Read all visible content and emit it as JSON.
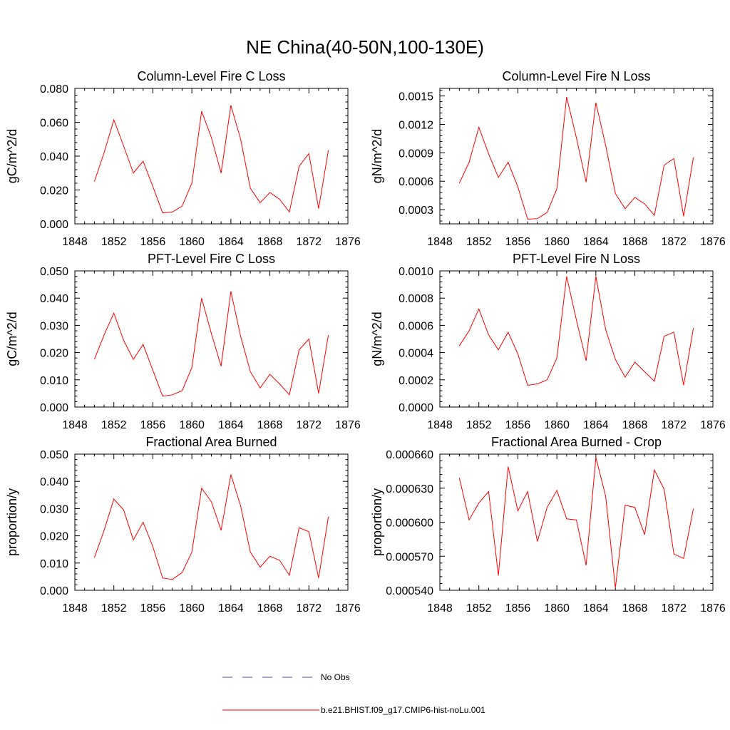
{
  "figure_title": "NE China(40-50N,100-130E)",
  "legend": {
    "obs_label": "No Obs",
    "obs_color": "#4b4bbf",
    "model_label": "b.e21.BHIST.f09_g17.CMIP6-hist-noLu.001",
    "model_color": "#ff0000"
  },
  "chart_data": [
    {
      "type": "line",
      "title": "Column-Level Fire C Loss",
      "ylabel": "gC/m^2/d",
      "xlim": [
        1848,
        1876
      ],
      "xticks": [
        1848,
        1852,
        1856,
        1860,
        1864,
        1868,
        1872,
        1876
      ],
      "xtick_labels": [
        "1848",
        "1852",
        "1856",
        "1860",
        "1864",
        "1868",
        "1872",
        "1876"
      ],
      "ylim": [
        0,
        0.08
      ],
      "yticks": [
        0,
        0.02,
        0.04,
        0.06,
        0.08
      ],
      "ytick_labels": [
        "0.000",
        "0.020",
        "0.040",
        "0.060",
        "0.080"
      ],
      "series": [
        {
          "color": "#ff0000",
          "x": [
            1850,
            1851,
            1852,
            1853,
            1854,
            1855,
            1856,
            1857,
            1858,
            1859,
            1860,
            1861,
            1862,
            1863,
            1864,
            1865,
            1866,
            1867,
            1868,
            1869,
            1870,
            1871,
            1872,
            1873,
            1874
          ],
          "values": [
            0.025,
            0.042,
            0.0615,
            0.046,
            0.03,
            0.037,
            0.022,
            0.0065,
            0.007,
            0.0105,
            0.024,
            0.0665,
            0.051,
            0.03,
            0.07,
            0.05,
            0.021,
            0.0125,
            0.0185,
            0.0145,
            0.007,
            0.034,
            0.0415,
            0.009,
            0.0435
          ]
        }
      ]
    },
    {
      "type": "line",
      "title": "Column-Level Fire N Loss",
      "ylabel": "gN/m^2/d",
      "xlim": [
        1848,
        1876
      ],
      "xticks": [
        1848,
        1852,
        1856,
        1860,
        1864,
        1868,
        1872,
        1876
      ],
      "xtick_labels": [
        "1848",
        "1852",
        "1856",
        "1860",
        "1864",
        "1868",
        "1872",
        "1876"
      ],
      "ylim": [
        0.00015,
        0.00158
      ],
      "yticks": [
        0.0003,
        0.0006,
        0.0009,
        0.0012,
        0.0015
      ],
      "ytick_labels": [
        "0.0003",
        "0.0006",
        "0.0009",
        "0.0012",
        "0.0015"
      ],
      "series": [
        {
          "color": "#ff0000",
          "x": [
            1850,
            1851,
            1852,
            1853,
            1854,
            1855,
            1856,
            1857,
            1858,
            1859,
            1860,
            1861,
            1862,
            1863,
            1864,
            1865,
            1866,
            1867,
            1868,
            1869,
            1870,
            1871,
            1872,
            1873,
            1874
          ],
          "values": [
            0.00058,
            0.0008,
            0.00117,
            0.00089,
            0.00064,
            0.0008,
            0.00054,
            0.0002,
            0.000205,
            0.00027,
            0.00052,
            0.00149,
            0.00106,
            0.00059,
            0.00143,
            0.00098,
            0.00047,
            0.00031,
            0.00043,
            0.00036,
            0.00024,
            0.00077,
            0.00084,
            0.00023,
            0.00085
          ]
        }
      ]
    },
    {
      "type": "line",
      "title": "PFT-Level Fire C Loss",
      "ylabel": "gC/m^2/d",
      "xlim": [
        1848,
        1876
      ],
      "xticks": [
        1848,
        1852,
        1856,
        1860,
        1864,
        1868,
        1872,
        1876
      ],
      "xtick_labels": [
        "1848",
        "1852",
        "1856",
        "1860",
        "1864",
        "1868",
        "1872",
        "1876"
      ],
      "ylim": [
        0,
        0.05
      ],
      "yticks": [
        0,
        0.01,
        0.02,
        0.03,
        0.04,
        0.05
      ],
      "ytick_labels": [
        "0.000",
        "0.010",
        "0.020",
        "0.030",
        "0.040",
        "0.050"
      ],
      "series": [
        {
          "color": "#ff0000",
          "x": [
            1850,
            1851,
            1852,
            1853,
            1854,
            1855,
            1856,
            1857,
            1858,
            1859,
            1860,
            1861,
            1862,
            1863,
            1864,
            1865,
            1866,
            1867,
            1868,
            1869,
            1870,
            1871,
            1872,
            1873,
            1874
          ],
          "values": [
            0.0175,
            0.0265,
            0.0345,
            0.0245,
            0.0175,
            0.023,
            0.0135,
            0.004,
            0.0045,
            0.006,
            0.0145,
            0.04,
            0.027,
            0.015,
            0.0425,
            0.026,
            0.013,
            0.007,
            0.012,
            0.0085,
            0.0045,
            0.021,
            0.025,
            0.005,
            0.0265
          ]
        }
      ]
    },
    {
      "type": "line",
      "title": "PFT-Level Fire N Loss",
      "ylabel": "gN/m^2/d",
      "xlim": [
        1848,
        1876
      ],
      "xticks": [
        1848,
        1852,
        1856,
        1860,
        1864,
        1868,
        1872,
        1876
      ],
      "xtick_labels": [
        "1848",
        "1852",
        "1856",
        "1860",
        "1864",
        "1868",
        "1872",
        "1876"
      ],
      "ylim": [
        0,
        0.001
      ],
      "yticks": [
        0,
        0.0002,
        0.0004,
        0.0006,
        0.0008,
        0.001
      ],
      "ytick_labels": [
        "0.0000",
        "0.0002",
        "0.0004",
        "0.0006",
        "0.0008",
        "0.0010"
      ],
      "series": [
        {
          "color": "#ff0000",
          "x": [
            1850,
            1851,
            1852,
            1853,
            1854,
            1855,
            1856,
            1857,
            1858,
            1859,
            1860,
            1861,
            1862,
            1863,
            1864,
            1865,
            1866,
            1867,
            1868,
            1869,
            1870,
            1871,
            1872,
            1873,
            1874
          ],
          "values": [
            0.00045,
            0.00056,
            0.00072,
            0.00053,
            0.00042,
            0.00055,
            0.00039,
            0.00016,
            0.00017,
            0.0002,
            0.00036,
            0.00096,
            0.00064,
            0.00034,
            0.00096,
            0.00057,
            0.00035,
            0.00022,
            0.00033,
            0.00026,
            0.00019,
            0.00052,
            0.00055,
            0.00016,
            0.00058
          ]
        }
      ]
    },
    {
      "type": "line",
      "title": "Fractional Area Burned",
      "ylabel": "proportion/y",
      "xlim": [
        1848,
        1876
      ],
      "xticks": [
        1848,
        1852,
        1856,
        1860,
        1864,
        1868,
        1872,
        1876
      ],
      "xtick_labels": [
        "1848",
        "1852",
        "1856",
        "1860",
        "1864",
        "1868",
        "1872",
        "1876"
      ],
      "ylim": [
        0,
        0.05
      ],
      "yticks": [
        0,
        0.01,
        0.02,
        0.03,
        0.04,
        0.05
      ],
      "ytick_labels": [
        "0.000",
        "0.010",
        "0.020",
        "0.030",
        "0.040",
        "0.050"
      ],
      "series": [
        {
          "color": "#ff0000",
          "x": [
            1850,
            1851,
            1852,
            1853,
            1854,
            1855,
            1856,
            1857,
            1858,
            1859,
            1860,
            1861,
            1862,
            1863,
            1864,
            1865,
            1866,
            1867,
            1868,
            1869,
            1870,
            1871,
            1872,
            1873,
            1874
          ],
          "values": [
            0.012,
            0.022,
            0.0335,
            0.0295,
            0.0185,
            0.025,
            0.016,
            0.0045,
            0.004,
            0.0065,
            0.014,
            0.0375,
            0.0325,
            0.022,
            0.0425,
            0.031,
            0.014,
            0.0085,
            0.0125,
            0.011,
            0.0055,
            0.023,
            0.0215,
            0.0045,
            0.027
          ]
        }
      ]
    },
    {
      "type": "line",
      "title": "Fractional Area Burned - Crop",
      "ylabel": "proportion/y",
      "xlim": [
        1848,
        1876
      ],
      "xticks": [
        1848,
        1852,
        1856,
        1860,
        1864,
        1868,
        1872,
        1876
      ],
      "xtick_labels": [
        "1848",
        "1852",
        "1856",
        "1860",
        "1864",
        "1868",
        "1872",
        "1876"
      ],
      "ylim": [
        0.00054,
        0.00066
      ],
      "yticks": [
        0.00054,
        0.00057,
        0.0006,
        0.00063,
        0.00066
      ],
      "ytick_labels": [
        "0.000540",
        "0.000570",
        "0.000600",
        "0.000630",
        "0.000660"
      ],
      "series": [
        {
          "color": "#ff0000",
          "x": [
            1850,
            1851,
            1852,
            1853,
            1854,
            1855,
            1856,
            1857,
            1858,
            1859,
            1860,
            1861,
            1862,
            1863,
            1864,
            1865,
            1866,
            1867,
            1868,
            1869,
            1870,
            1871,
            1872,
            1873,
            1874
          ],
          "values": [
            0.000639,
            0.000602,
            0.000617,
            0.000627,
            0.000553,
            0.000649,
            0.00061,
            0.000627,
            0.000583,
            0.000613,
            0.000628,
            0.000603,
            0.000602,
            0.000562,
            0.000657,
            0.000623,
            0.000542,
            0.000615,
            0.000613,
            0.000589,
            0.000646,
            0.000629,
            0.000572,
            0.000568,
            0.000612
          ]
        }
      ]
    }
  ]
}
